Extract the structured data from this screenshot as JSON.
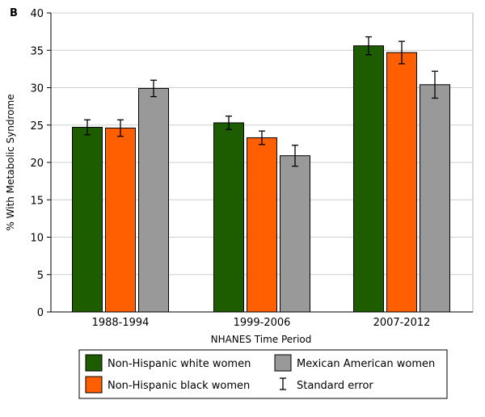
{
  "panel_label": "B",
  "chart_data": {
    "type": "bar",
    "xlabel": "NHANES Time Period",
    "ylabel": "% With Metabolic Syndrome",
    "ylim": [
      0,
      40
    ],
    "yticks": [
      0,
      5,
      10,
      15,
      20,
      25,
      30,
      35,
      40
    ],
    "grid": true,
    "legend_position": "bottom",
    "categories": [
      "1988-1994",
      "1999-2006",
      "2007-2012"
    ],
    "series": [
      {
        "name": "Non-Hispanic white women",
        "color": "#1e5c00",
        "values": [
          24.7,
          25.3,
          35.6
        ],
        "errors": [
          1.0,
          0.9,
          1.2
        ]
      },
      {
        "name": "Non-Hispanic black women",
        "color": "#ff5f00",
        "values": [
          24.6,
          23.3,
          34.7
        ],
        "errors": [
          1.1,
          0.9,
          1.5
        ]
      },
      {
        "name": "Mexican American women",
        "color": "#999999",
        "values": [
          29.9,
          20.9,
          30.4
        ],
        "errors": [
          1.1,
          1.4,
          1.8
        ]
      }
    ],
    "legend_extra": "Standard error"
  }
}
